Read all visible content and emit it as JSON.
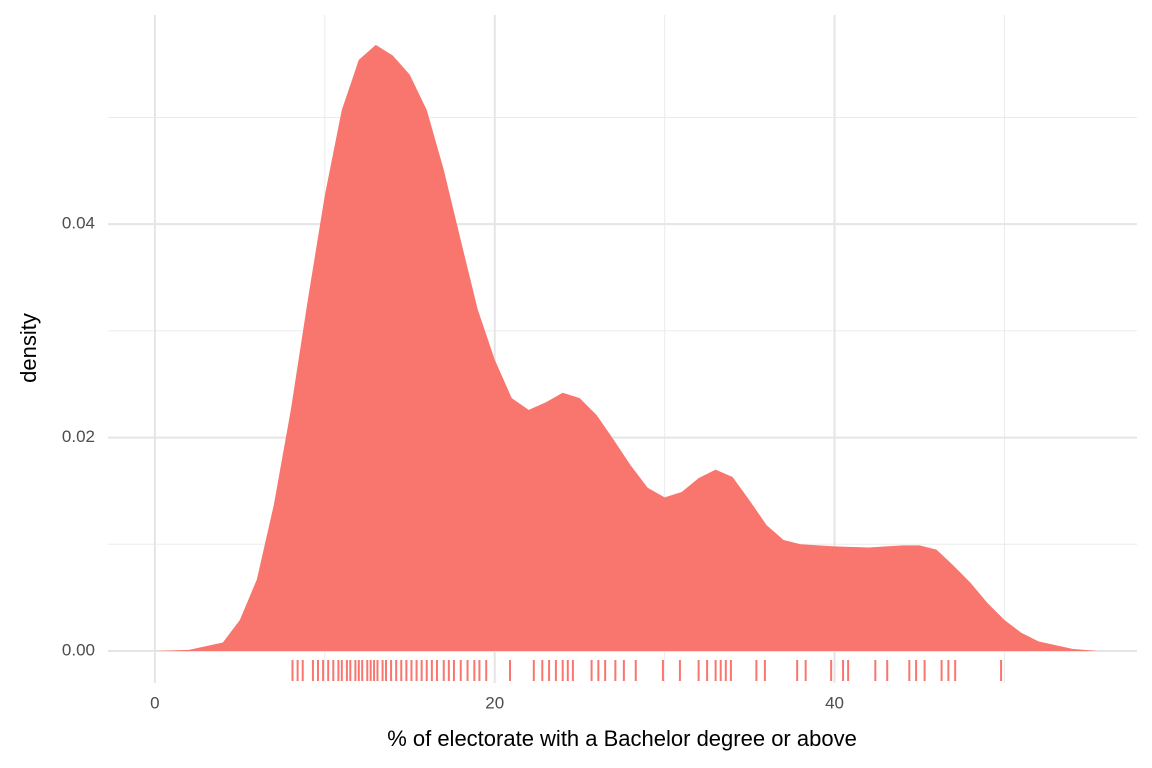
{
  "chart_data": {
    "type": "density",
    "x_label": "% of electorate with a Bachelor degree or above",
    "y_label": "density",
    "color": "#f8766d",
    "x": [
      0,
      2,
      4,
      5,
      6,
      7,
      8,
      9,
      10,
      11,
      12,
      13,
      14,
      15,
      16,
      17,
      18,
      19,
      20,
      21,
      22,
      23,
      24,
      25,
      26,
      27,
      28,
      29,
      30,
      31,
      32,
      33,
      34,
      35,
      36,
      37,
      38,
      40,
      42,
      44,
      45,
      46,
      47,
      48,
      49,
      50,
      51,
      52,
      54,
      55.5
    ],
    "values": [
      0,
      0.0001,
      0.0008,
      0.0029,
      0.0067,
      0.0137,
      0.0226,
      0.0329,
      0.0427,
      0.0507,
      0.0554,
      0.0568,
      0.0558,
      0.054,
      0.0507,
      0.0451,
      0.0385,
      0.032,
      0.0273,
      0.0237,
      0.0226,
      0.0233,
      0.0242,
      0.0237,
      0.0221,
      0.0198,
      0.0174,
      0.0153,
      0.0144,
      0.0149,
      0.0162,
      0.017,
      0.0163,
      0.0141,
      0.0118,
      0.0104,
      0.01,
      0.0098,
      0.0097,
      0.0099,
      0.0099,
      0.0095,
      0.008,
      0.0064,
      0.0045,
      0.0029,
      0.0017,
      0.0009,
      0.0002,
      0
    ],
    "rug": [
      8.1,
      8.4,
      8.7,
      9.3,
      9.6,
      9.9,
      10.2,
      10.5,
      10.8,
      11.0,
      11.3,
      11.5,
      11.8,
      12.0,
      12.2,
      12.5,
      12.7,
      12.9,
      13.1,
      13.4,
      13.6,
      13.9,
      14.2,
      14.5,
      14.8,
      15.1,
      15.4,
      15.7,
      16.0,
      16.3,
      16.6,
      17.0,
      17.3,
      17.6,
      18.0,
      18.4,
      18.8,
      19.1,
      19.5,
      20.9,
      22.3,
      22.8,
      23.2,
      23.6,
      24.0,
      24.3,
      24.6,
      25.7,
      26.1,
      26.5,
      27.1,
      27.6,
      28.3,
      29.9,
      30.9,
      32.0,
      32.5,
      33.0,
      33.3,
      33.6,
      33.9,
      35.4,
      35.9,
      37.8,
      38.3,
      39.8,
      40.5,
      40.8,
      42.4,
      43.1,
      44.4,
      44.8,
      45.3,
      46.3,
      46.7,
      47.1,
      49.8
    ],
    "xlim": [
      -2.76,
      57.8
    ],
    "ylim": [
      -0.003,
      0.0596
    ],
    "xticks": [
      0,
      20,
      40
    ],
    "yticks": [
      {
        "value": 0,
        "label": "0.00"
      },
      {
        "value": 0.02,
        "label": "0.02"
      },
      {
        "value": 0.04,
        "label": "0.04"
      }
    ],
    "grid": true
  }
}
